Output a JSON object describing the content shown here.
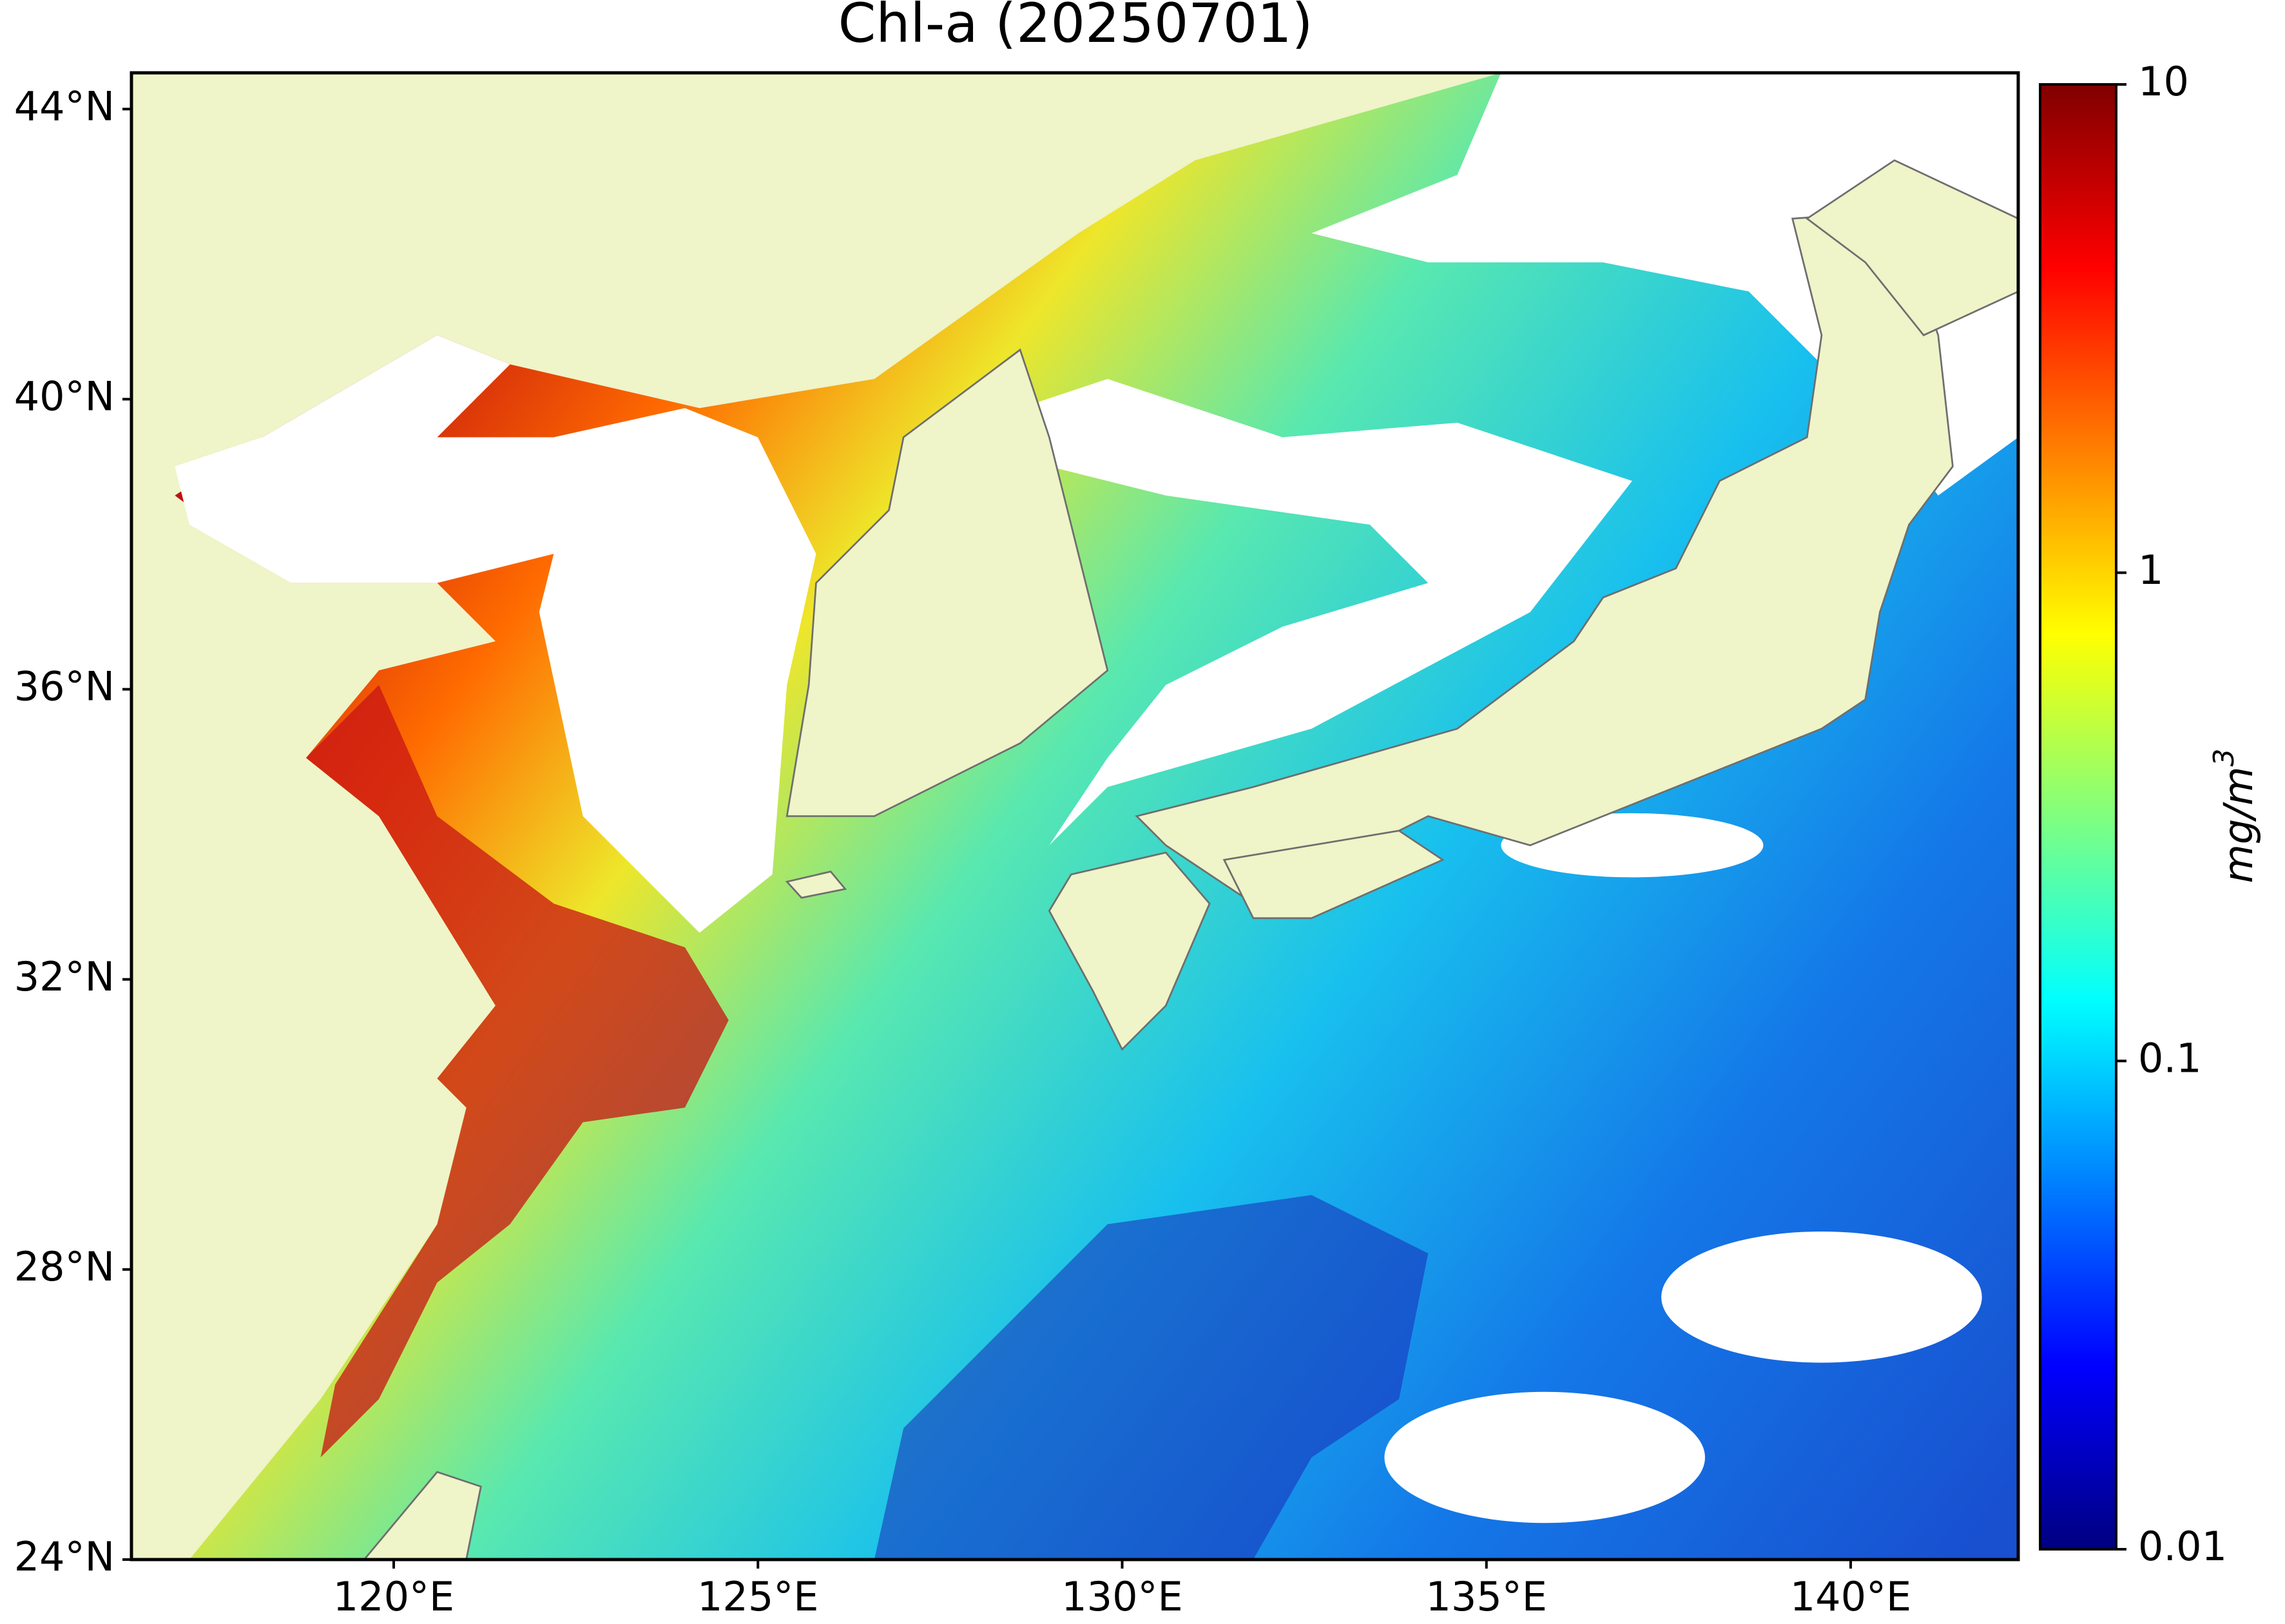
{
  "title": "Chl-a (20250701)",
  "map": {
    "xlim": [
      116.4,
      142.3
    ],
    "ylim": [
      24,
      44.5
    ],
    "xticks": [
      {
        "value": 120,
        "label": "120°E"
      },
      {
        "value": 125,
        "label": "125°E"
      },
      {
        "value": 130,
        "label": "130°E"
      },
      {
        "value": 135,
        "label": "135°E"
      },
      {
        "value": 140,
        "label": "140°E"
      }
    ],
    "yticks": [
      {
        "value": 24,
        "label": "24°N"
      },
      {
        "value": 28,
        "label": "28°N"
      },
      {
        "value": 32,
        "label": "32°N"
      },
      {
        "value": 36,
        "label": "36°N"
      },
      {
        "value": 40,
        "label": "40°N"
      },
      {
        "value": 44,
        "label": "44°N"
      }
    ]
  },
  "colorbar": {
    "label": "mg/m",
    "label_superscript": "3",
    "scale": "log",
    "colormap": "jet",
    "lim": [
      0.01,
      10
    ],
    "ticks": [
      0.01,
      0.1,
      1,
      10
    ]
  }
}
